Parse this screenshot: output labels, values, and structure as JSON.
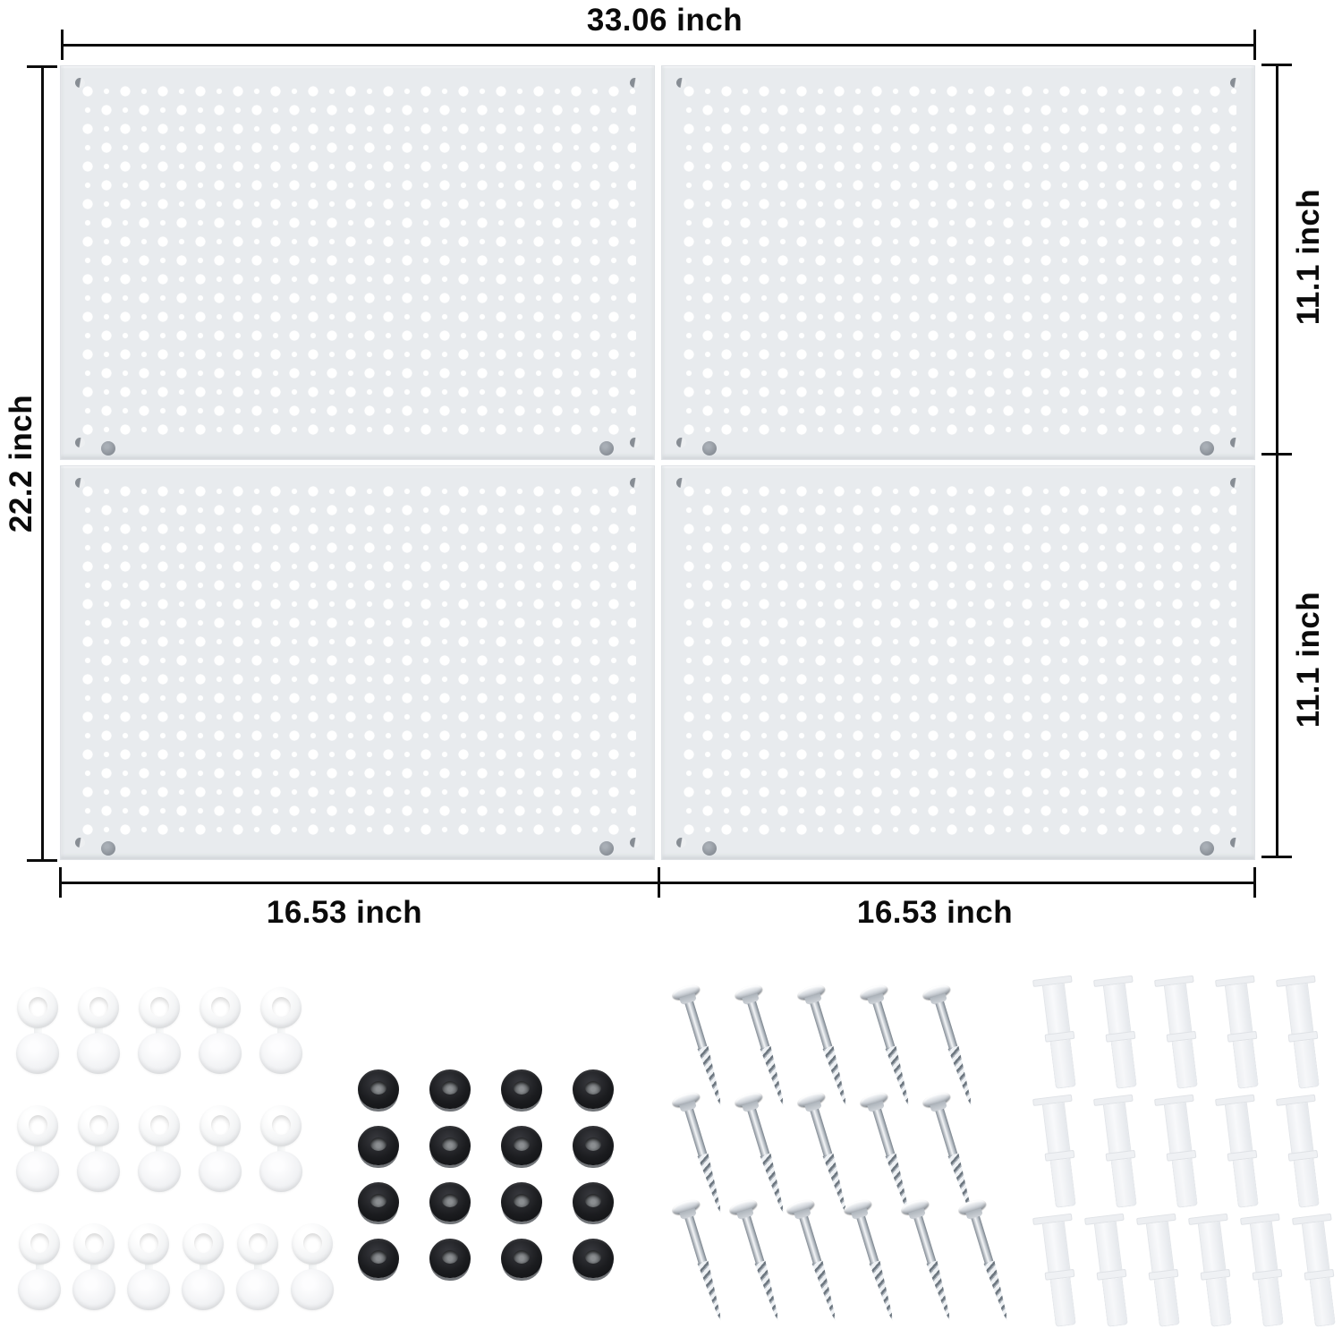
{
  "page": {
    "background": "#ffffff"
  },
  "diagram": {
    "type": "pegboard-dimension-diagram",
    "labels": {
      "total_width": "33.06 inch",
      "total_height": "22.2 inch",
      "right_top": "11.1 inch",
      "right_bottom": "11.1 inch",
      "bottom_left": "16.53 inch",
      "bottom_right": "16.53 inch"
    },
    "panels": {
      "rows": 2,
      "cols": 2,
      "count": 4
    },
    "colors": {
      "panel": "#e8ebee",
      "hole": "#ffffff",
      "dimension_line": "#0c0c0c",
      "label_text": "#0b0b0b",
      "spacer_black": "#1b1c1f"
    }
  },
  "hardware": {
    "hinged_screw_caps": {
      "name": "white hinged screw caps",
      "rows": [
        5,
        5,
        6
      ],
      "count": 16
    },
    "rubber_spacers": {
      "name": "black rubber spacers",
      "rows": [
        4,
        4,
        4,
        4
      ],
      "count": 16
    },
    "mounting_screws": {
      "name": "silver mounting screws",
      "rows": [
        5,
        5,
        6
      ],
      "count": 16
    },
    "wall_anchors": {
      "name": "white wall anchors",
      "rows": [
        5,
        5,
        6
      ],
      "count": 16
    }
  }
}
